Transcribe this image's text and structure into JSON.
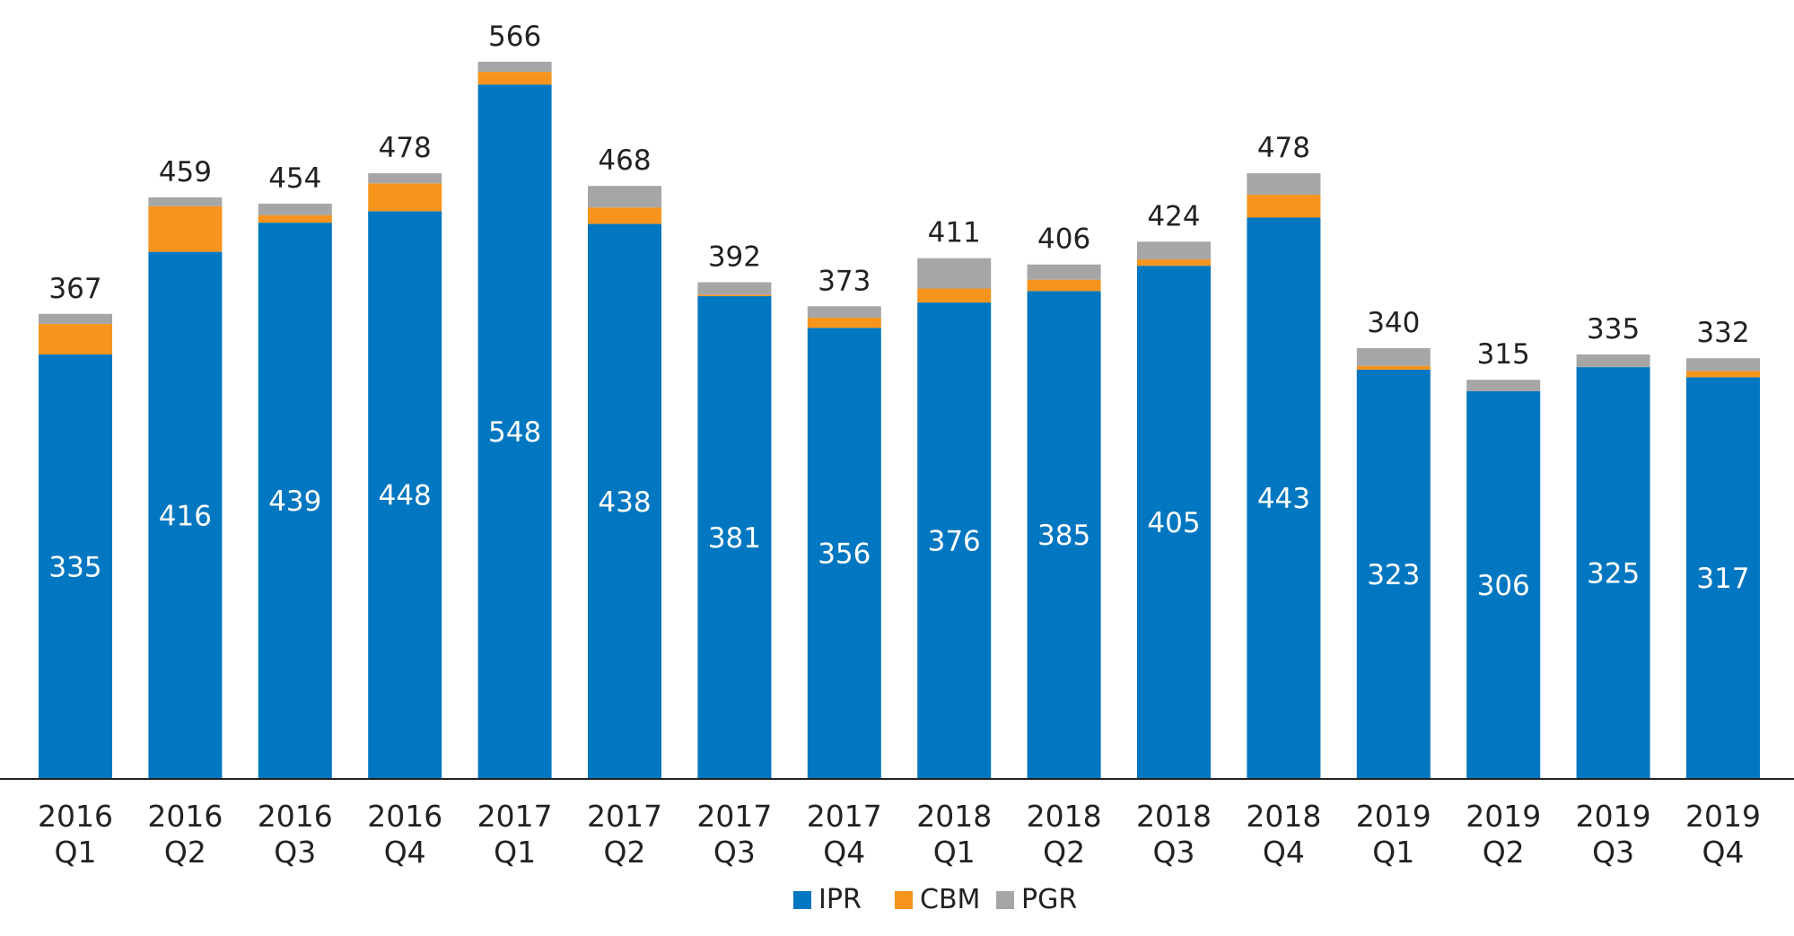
{
  "chart_data": {
    "type": "bar",
    "stacked": true,
    "title": "",
    "xlabel": "",
    "ylabel": "",
    "ylim": [
      0,
      566
    ],
    "grid": false,
    "legend_position": "bottom",
    "categories": [
      [
        "2016",
        "Q1"
      ],
      [
        "2016",
        "Q2"
      ],
      [
        "2016",
        "Q3"
      ],
      [
        "2016",
        "Q4"
      ],
      [
        "2017",
        "Q1"
      ],
      [
        "2017",
        "Q2"
      ],
      [
        "2017",
        "Q3"
      ],
      [
        "2017",
        "Q4"
      ],
      [
        "2018",
        "Q1"
      ],
      [
        "2018",
        "Q2"
      ],
      [
        "2018",
        "Q3"
      ],
      [
        "2018",
        "Q4"
      ],
      [
        "2019",
        "Q1"
      ],
      [
        "2019",
        "Q2"
      ],
      [
        "2019",
        "Q3"
      ],
      [
        "2019",
        "Q4"
      ]
    ],
    "series": [
      {
        "name": "IPR",
        "color": "#0077c0",
        "values": [
          335,
          416,
          439,
          448,
          548,
          438,
          381,
          356,
          376,
          385,
          405,
          443,
          323,
          306,
          325,
          317
        ]
      },
      {
        "name": "CBM",
        "color": "#f7941d",
        "values": [
          24,
          36,
          6,
          22,
          10,
          13,
          1,
          8,
          11,
          9,
          5,
          18,
          3,
          0,
          0,
          5
        ]
      },
      {
        "name": "PGR",
        "color": "#a6a6a6",
        "values": [
          8,
          7,
          9,
          8,
          8,
          17,
          10,
          9,
          24,
          12,
          14,
          17,
          14,
          9,
          10,
          10
        ]
      }
    ],
    "totals": [
      367,
      459,
      454,
      478,
      566,
      468,
      392,
      373,
      411,
      406,
      424,
      478,
      340,
      315,
      335,
      332
    ]
  }
}
